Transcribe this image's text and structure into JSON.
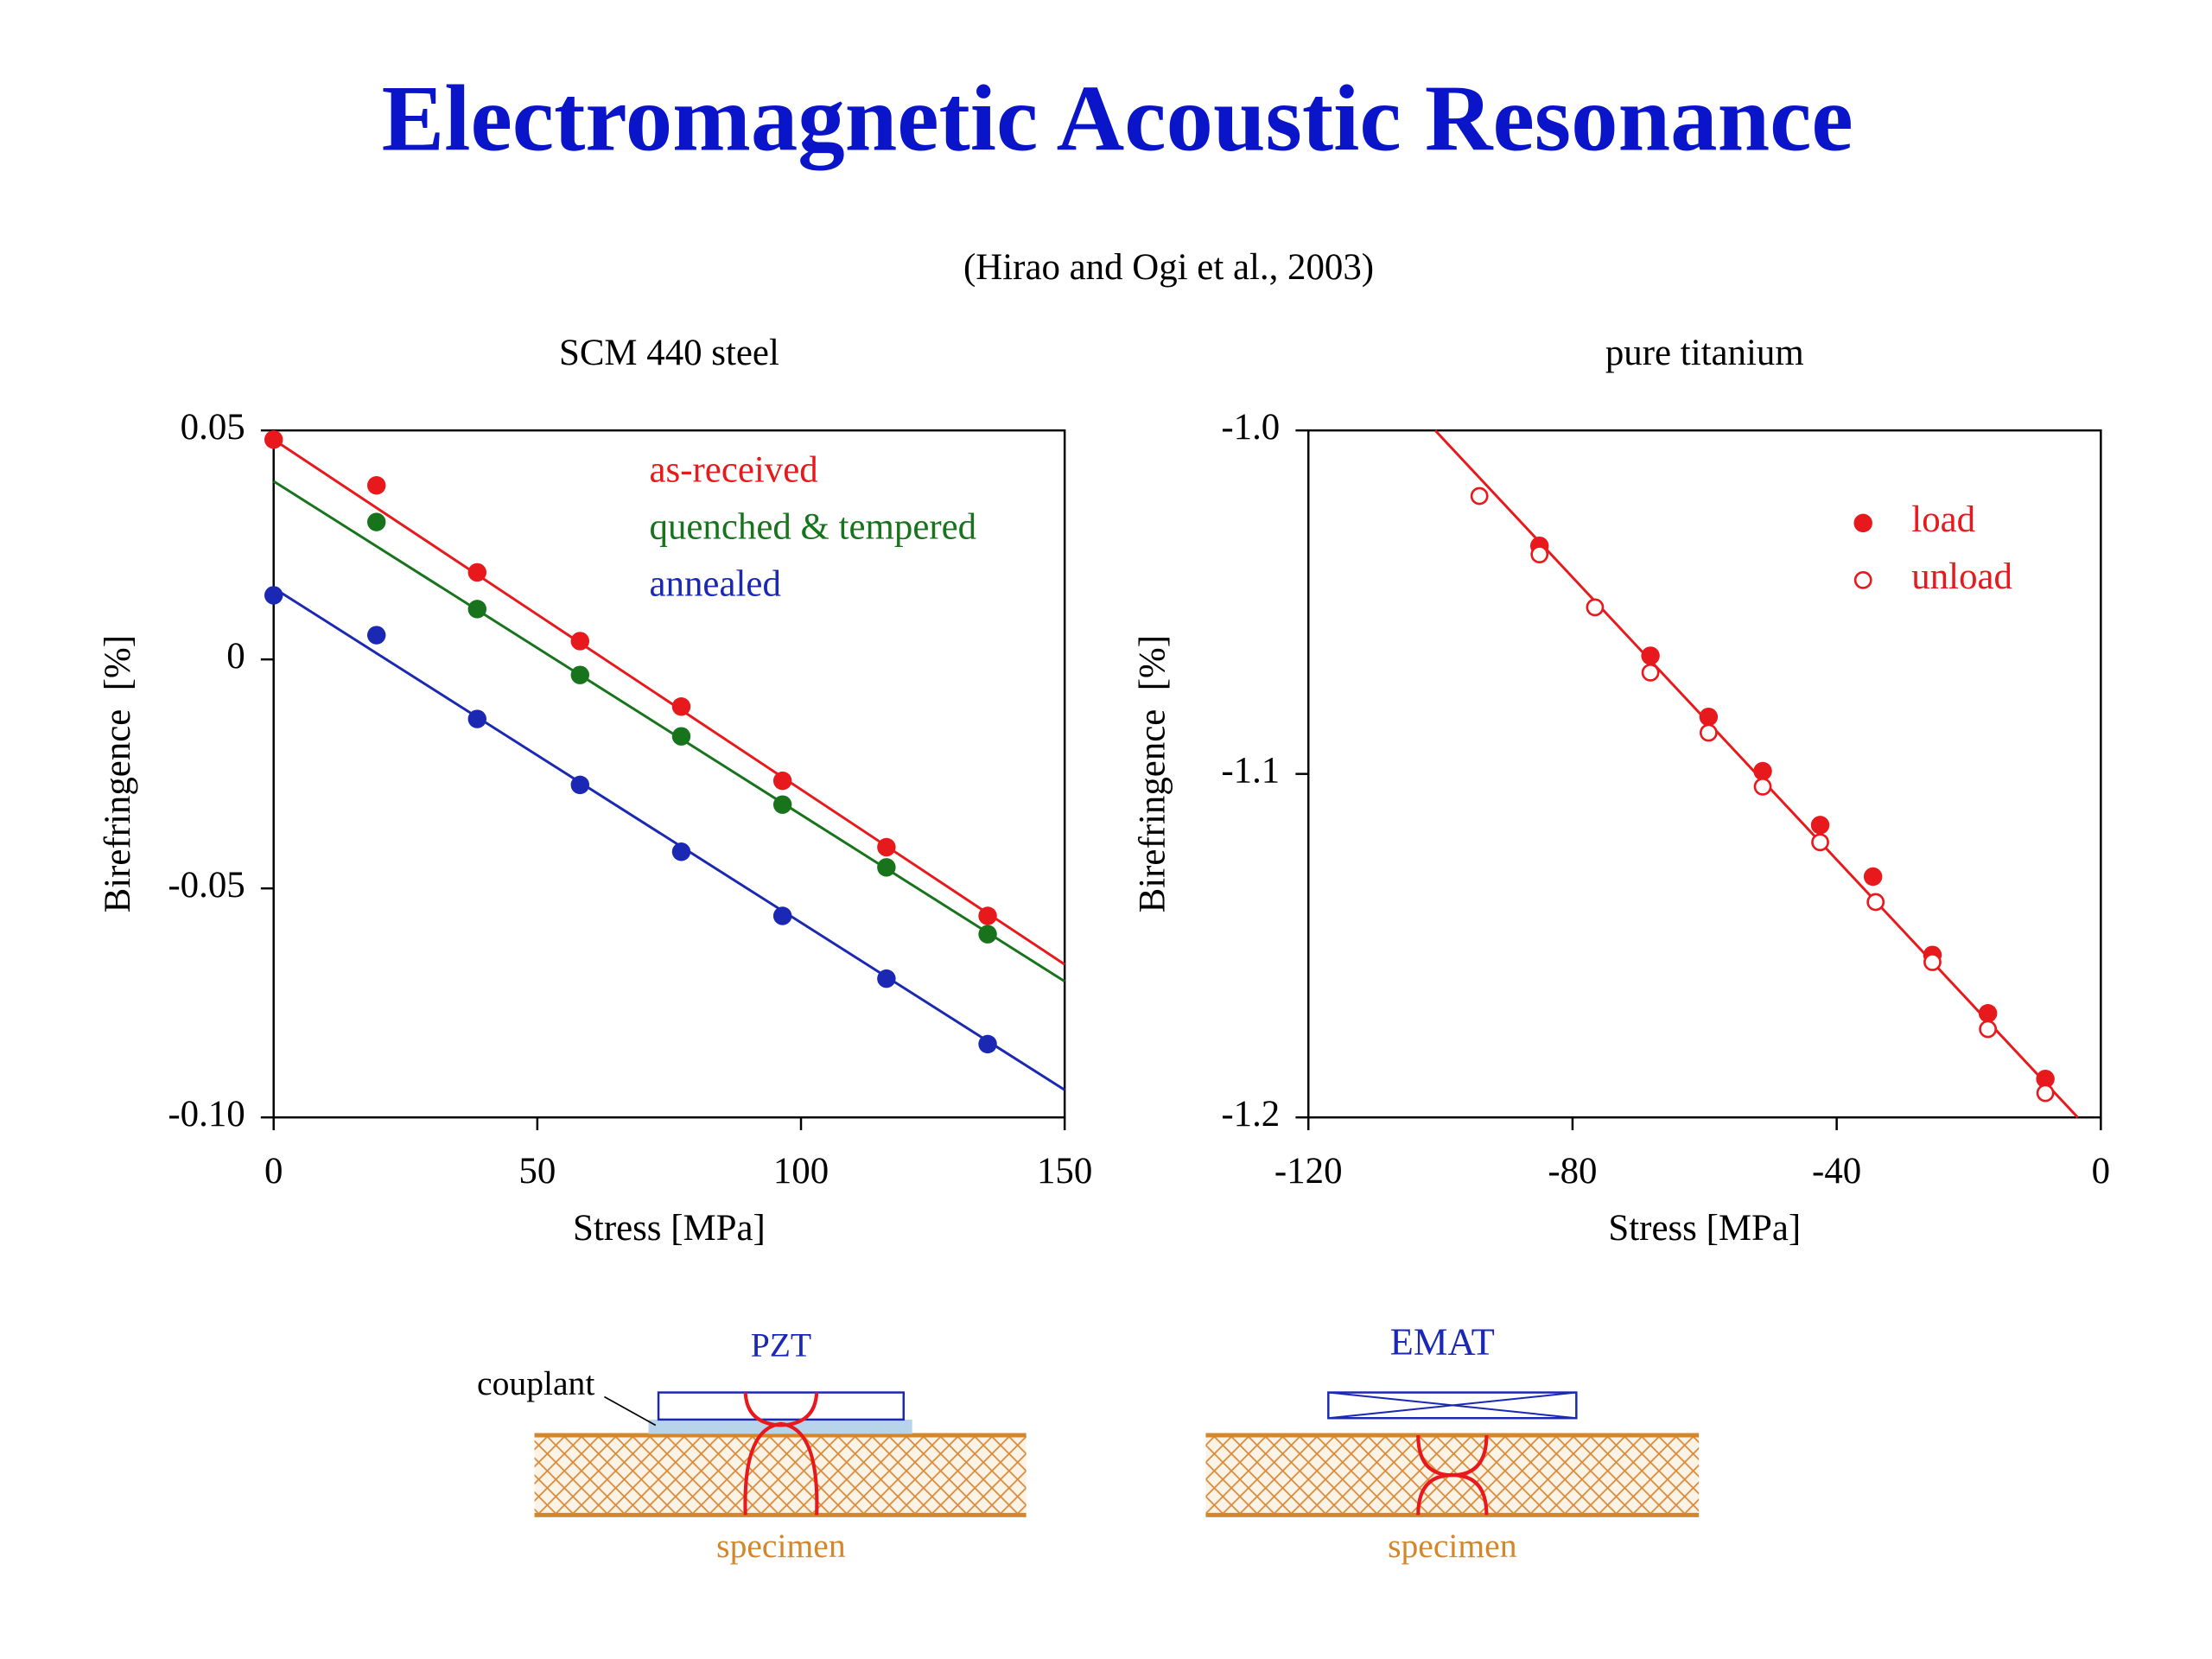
{
  "title": "Electromagnetic Acoustic Resonance",
  "citation": "(Hirao and Ogi et al., 2003)",
  "chart_data": [
    {
      "type": "scatter",
      "title": "SCM 440 steel",
      "x_label": "Stress [MPa]",
      "y_label": "Birefringence  [%]",
      "xlim": [
        0,
        150
      ],
      "xticks": [
        0,
        50,
        100,
        150
      ],
      "ylim": [
        -0.1,
        0.05
      ],
      "yticks": [
        0.05,
        0,
        -0.05,
        {
          "value": -0.1,
          "label": "-0.10"
        }
      ],
      "legend": "upper right",
      "series": [
        {
          "name": "as-received",
          "color": "#e8191c",
          "marker": "filled",
          "x": [
            0,
            19.5,
            38.6,
            58.1,
            77.3,
            96.5,
            116.2,
            135.4
          ],
          "values": [
            0.048,
            0.038,
            0.019,
            0.004,
            -0.0103,
            -0.0265,
            -0.041,
            -0.056
          ],
          "fit": {
            "x": [
              0,
              150
            ],
            "values": [
              0.048,
              -0.0666
            ]
          }
        },
        {
          "name": "quenched & tempered",
          "color": "#17741c",
          "marker": "filled",
          "x": [
            19.5,
            38.6,
            58.1,
            77.3,
            96.5,
            116.2,
            135.4
          ],
          "values": [
            0.03,
            0.011,
            -0.0034,
            -0.0168,
            -0.0317,
            -0.0454,
            -0.06
          ],
          "fit": {
            "x": [
              0,
              150
            ],
            "values": [
              0.0389,
              -0.0703
            ]
          }
        },
        {
          "name": "annealed",
          "color": "#1a28b4",
          "marker": "filled",
          "x": [
            0,
            19.5,
            38.6,
            58.1,
            77.3,
            96.5,
            116.2,
            135.4
          ],
          "values": [
            0.014,
            0.0053,
            -0.013,
            -0.0274,
            -0.042,
            -0.056,
            -0.0697,
            -0.084
          ],
          "fit": {
            "x": [
              0,
              150
            ],
            "values": [
              0.0156,
              -0.094
            ]
          }
        }
      ]
    },
    {
      "type": "scatter",
      "title": "pure titanium",
      "x_label": "Stress [MPa]",
      "y_label": "Birefringence  [%]",
      "xlim": [
        -120,
        0
      ],
      "xticks": [
        -120,
        -80,
        -40,
        0
      ],
      "ylim": [
        -1.2,
        -1.0
      ],
      "yticks": [
        {
          "value": -1.0,
          "label": "-1.0"
        },
        -1.1,
        -1.2
      ],
      "legend": "upper right",
      "fit": {
        "color": "#e8191c",
        "x": [
          -100.8,
          -3.5
        ],
        "values": [
          -1.0,
          -1.2
        ]
      },
      "series": [
        {
          "name": "load",
          "color": "#e8191c",
          "marker": "filled",
          "x": [
            -85.0,
            -68.2,
            -59.4,
            -51.2,
            -42.5,
            -34.5,
            -25.5,
            -17.1,
            -8.4
          ],
          "values": [
            -1.0336,
            -1.0656,
            -1.0834,
            -1.0992,
            -1.1149,
            -1.1299,
            -1.1527,
            -1.1697,
            -1.1888
          ]
        },
        {
          "name": "unload",
          "color": "#e8191c",
          "marker": "open",
          "x": [
            -94.1,
            -85.0,
            -76.6,
            -68.2,
            -59.4,
            -51.2,
            -42.5,
            -34.1,
            -25.5,
            -17.1,
            -8.4
          ],
          "values": [
            -1.0191,
            -1.0361,
            -1.0515,
            -1.0705,
            -1.088,
            -1.1037,
            -1.1199,
            -1.1373,
            -1.1548,
            -1.1743,
            -1.1929
          ]
        }
      ]
    }
  ],
  "diagrams": [
    {
      "label": "PZT",
      "couplant": "couplant",
      "specimen": "specimen"
    },
    {
      "label": "EMAT",
      "specimen": "specimen"
    }
  ]
}
